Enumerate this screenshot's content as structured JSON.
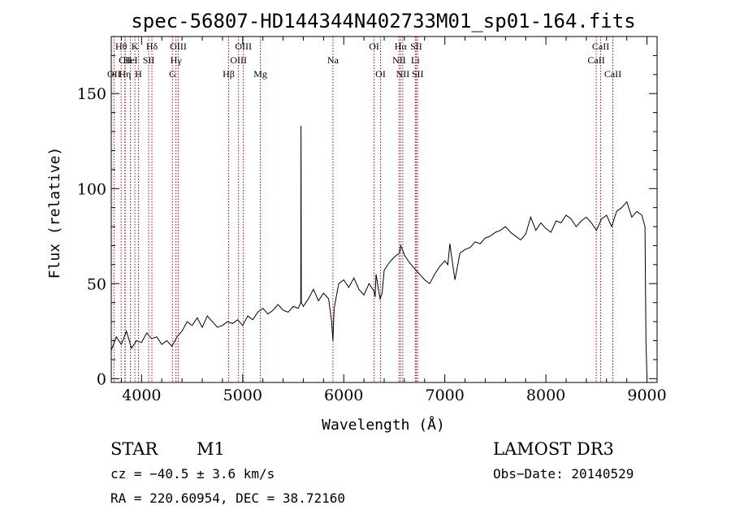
{
  "chart_data": {
    "type": "line",
    "title": "spec-56807-HD144344N402733M01_sp01-164.fits",
    "xlabel": "Wavelength (Å)",
    "ylabel": "Flux (relative)",
    "xlim": [
      3700,
      9100
    ],
    "ylim": [
      -2,
      180
    ],
    "x_ticks": [
      4000,
      5000,
      6000,
      7000,
      8000,
      9000
    ],
    "y_ticks": [
      0,
      50,
      100,
      150
    ],
    "grid": false,
    "colors": {
      "spectrum": "#000000",
      "lines": "#c00000",
      "axes": "#000000"
    },
    "series": [
      {
        "name": "flux",
        "x": [
          3700,
          3750,
          3800,
          3850,
          3900,
          3950,
          4000,
          4050,
          4100,
          4150,
          4200,
          4250,
          4300,
          4350,
          4400,
          4450,
          4500,
          4550,
          4600,
          4650,
          4700,
          4750,
          4800,
          4850,
          4900,
          4950,
          5000,
          5050,
          5100,
          5150,
          5200,
          5250,
          5300,
          5350,
          5400,
          5450,
          5500,
          5550,
          5575,
          5577,
          5580,
          5600,
          5650,
          5700,
          5750,
          5800,
          5850,
          5880,
          5893,
          5905,
          5950,
          6000,
          6050,
          6100,
          6150,
          6200,
          6250,
          6300,
          6310,
          6320,
          6340,
          6360,
          6380,
          6400,
          6450,
          6500,
          6550,
          6563,
          6580,
          6600,
          6650,
          6700,
          6750,
          6800,
          6850,
          6900,
          6950,
          7000,
          7030,
          7050,
          7070,
          7100,
          7150,
          7200,
          7250,
          7300,
          7350,
          7400,
          7450,
          7500,
          7550,
          7600,
          7650,
          7700,
          7750,
          7800,
          7850,
          7900,
          7950,
          8000,
          8050,
          8100,
          8150,
          8200,
          8250,
          8300,
          8350,
          8400,
          8450,
          8500,
          8550,
          8600,
          8650,
          8700,
          8750,
          8800,
          8850,
          8900,
          8950,
          8980,
          8990,
          9000
        ],
        "y": [
          15,
          22,
          18,
          25,
          16,
          20,
          19,
          24,
          21,
          22,
          18,
          20,
          17,
          22,
          25,
          30,
          28,
          32,
          27,
          33,
          30,
          27,
          28,
          30,
          29,
          31,
          28,
          33,
          31,
          35,
          37,
          34,
          36,
          39,
          36,
          35,
          38,
          37,
          40,
          133,
          40,
          38,
          42,
          47,
          41,
          45,
          42,
          30,
          20,
          37,
          50,
          52,
          48,
          53,
          47,
          44,
          50,
          46,
          43,
          55,
          48,
          42,
          45,
          57,
          61,
          64,
          66,
          70,
          68,
          65,
          61,
          58,
          55,
          52,
          50,
          55,
          59,
          62,
          60,
          71,
          63,
          52,
          66,
          68,
          69,
          72,
          71,
          74,
          75,
          77,
          78,
          80,
          77,
          75,
          73,
          76,
          85,
          78,
          82,
          79,
          77,
          83,
          82,
          86,
          84,
          80,
          83,
          85,
          82,
          78,
          84,
          86,
          80,
          88,
          90,
          93,
          85,
          88,
          86,
          80,
          20,
          0
        ]
      }
    ],
    "spectral_lines": [
      {
        "label": "Hθ",
        "wavelength": 3798,
        "row": 0
      },
      {
        "label": "CII",
        "wavelength": 3838,
        "row": 1
      },
      {
        "label": "OII",
        "wavelength": 3727,
        "row": 2
      },
      {
        "label": "Hη",
        "wavelength": 3835,
        "row": 2
      },
      {
        "label": "K",
        "wavelength": 3934,
        "row": 0
      },
      {
        "label": "HeI",
        "wavelength": 3889,
        "row": 1
      },
      {
        "label": "H",
        "wavelength": 3969,
        "row": 2
      },
      {
        "label": "Hδ",
        "wavelength": 4102,
        "row": 0
      },
      {
        "label": "SII",
        "wavelength": 4070,
        "row": 1
      },
      {
        "label": "OIII",
        "wavelength": 4363,
        "row": 0
      },
      {
        "label": "Hγ",
        "wavelength": 4340,
        "row": 1
      },
      {
        "label": "G",
        "wavelength": 4305,
        "row": 2
      },
      {
        "label": "OIII",
        "wavelength": 5007,
        "row": 0
      },
      {
        "label": "OIII",
        "wavelength": 4959,
        "row": 1
      },
      {
        "label": "Hβ",
        "wavelength": 4861,
        "row": 2
      },
      {
        "label": "Mg",
        "wavelength": 5175,
        "row": 2
      },
      {
        "label": "Na",
        "wavelength": 5893,
        "row": 1
      },
      {
        "label": "OI",
        "wavelength": 6300,
        "row": 0
      },
      {
        "label": "OI",
        "wavelength": 6364,
        "row": 2
      },
      {
        "label": "Hα",
        "wavelength": 6563,
        "row": 0
      },
      {
        "label": "SII",
        "wavelength": 6717,
        "row": 0
      },
      {
        "label": "NII",
        "wavelength": 6548,
        "row": 1
      },
      {
        "label": "Li",
        "wavelength": 6708,
        "row": 1
      },
      {
        "label": "NII",
        "wavelength": 6584,
        "row": 2
      },
      {
        "label": "SII",
        "wavelength": 6731,
        "row": 2
      },
      {
        "label": "CaII",
        "wavelength": 8542,
        "row": 0
      },
      {
        "label": "CaII",
        "wavelength": 8498,
        "row": 1
      },
      {
        "label": "CaII",
        "wavelength": 8662,
        "row": 2
      }
    ]
  },
  "info": {
    "object_type": "STAR",
    "subclass": "M1",
    "survey": "LAMOST DR3",
    "redshift": "cz = −40.5 ± 3.6 km/s",
    "obs_date": "Obs−Date: 20140529",
    "coords": "RA = 220.60954, DEC =  38.72160"
  }
}
